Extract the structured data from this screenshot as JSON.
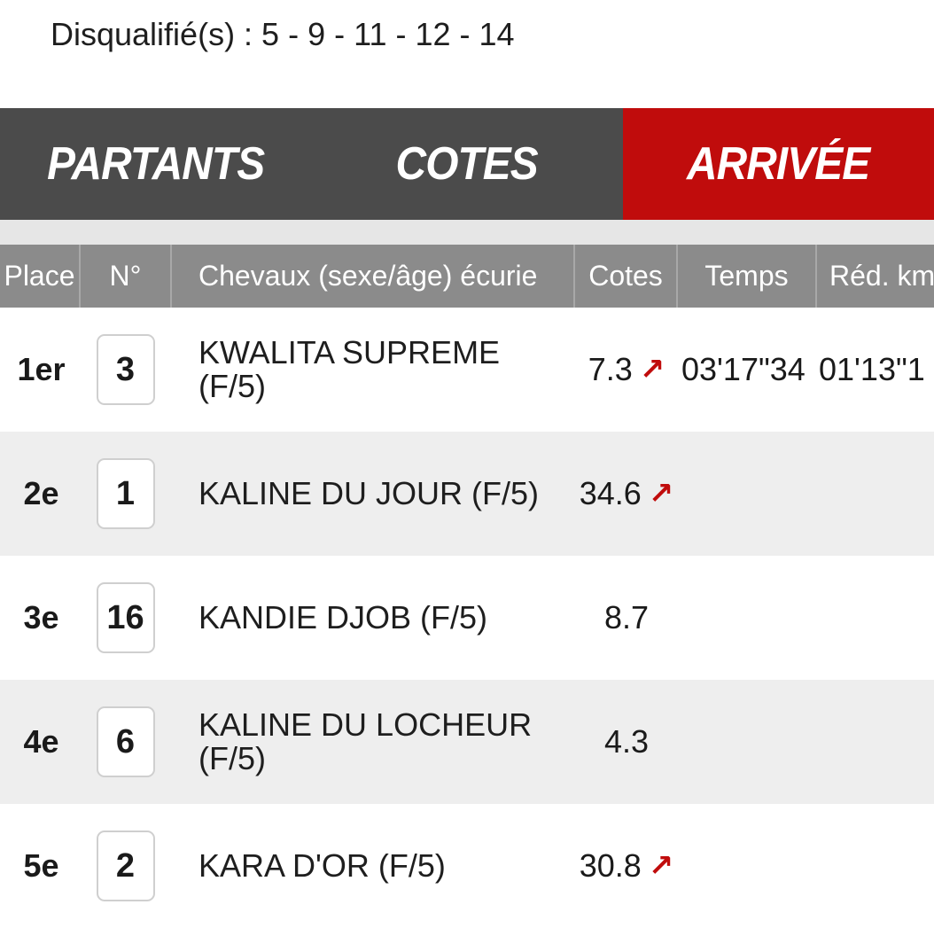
{
  "disqualified": "Disqualifié(s) : 5 - 9 - 11 - 12 - 14",
  "tabs": [
    {
      "label": "PARTANTS"
    },
    {
      "label": "COTES"
    },
    {
      "label": "ARRIVÉE"
    }
  ],
  "active_tab": "ARRIVÉE",
  "colors": {
    "accent": "#c00c0c",
    "tab_bar": "#4b4b4b",
    "header": "#8b8b8b"
  },
  "table": {
    "headers": {
      "place": "Place",
      "num": "N°",
      "horse": "Chevaux (sexe/âge) écurie",
      "cote": "Cotes",
      "temps": "Temps",
      "red": "Réd. km"
    },
    "rows": [
      {
        "place": "1er",
        "num": "3",
        "horse": "KWALITA SUPREME (F/5)",
        "cote": "7.3",
        "trend": "up-arrow-icon",
        "temps": "03'17\"34",
        "red": "01'13\"1"
      },
      {
        "place": "2e",
        "num": "1",
        "horse": "KALINE DU JOUR (F/5)",
        "cote": "34.6",
        "trend": "up-arrow-icon",
        "temps": "",
        "red": ""
      },
      {
        "place": "3e",
        "num": "16",
        "horse": "KANDIE DJOB (F/5)",
        "cote": "8.7",
        "trend": "",
        "temps": "",
        "red": ""
      },
      {
        "place": "4e",
        "num": "6",
        "horse": "KALINE DU LOCHEUR (F/5)",
        "cote": "4.3",
        "trend": "",
        "temps": "",
        "red": ""
      },
      {
        "place": "5e",
        "num": "2",
        "horse": "KARA D'OR (F/5)",
        "cote": "30.8",
        "trend": "up-arrow-icon",
        "temps": "",
        "red": ""
      }
    ]
  }
}
